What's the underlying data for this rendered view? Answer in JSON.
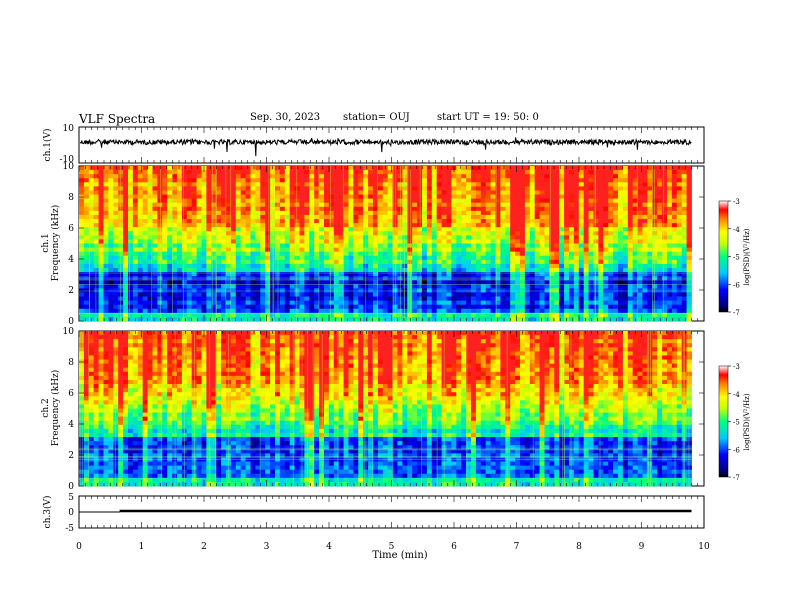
{
  "header": {
    "title": "VLF Spectra",
    "date": "Sep. 30, 2023",
    "station": "station= OUJ",
    "start": "start  UT =   19: 50: 0"
  },
  "chart_data": [
    {
      "type": "line",
      "panel": "ch1-waveform",
      "ylabel": "ch.1(V)",
      "ylim": [
        -10,
        10
      ],
      "yticks": [
        "10",
        "-10"
      ],
      "xlim": [
        0,
        10
      ]
    },
    {
      "type": "heatmap",
      "panel": "ch1-spectrogram",
      "ylabel_top": "ch.1",
      "ylabel": "Frequency (kHz)",
      "ylim": [
        0,
        10
      ],
      "yticks": [
        "0",
        "2",
        "4",
        "6",
        "8",
        "10"
      ],
      "xlim": [
        0,
        10
      ],
      "colorbar": {
        "label": "log(PSD)(V²/Hz)",
        "min": -7,
        "max": -3,
        "ticks": [
          "-3",
          "-4",
          "-5",
          "-6",
          "-7"
        ]
      }
    },
    {
      "type": "heatmap",
      "panel": "ch2-spectrogram",
      "ylabel_top": "ch.2",
      "ylabel": "Frequency (kHz)",
      "ylim": [
        0,
        10
      ],
      "yticks": [
        "0",
        "2",
        "4",
        "6",
        "8",
        "10"
      ],
      "xlim": [
        0,
        10
      ],
      "colorbar": {
        "label": "log(PSD)(V²/Hz)",
        "min": -7,
        "max": -3,
        "ticks": [
          "-3",
          "-4",
          "-5",
          "-6",
          "-7"
        ]
      }
    },
    {
      "type": "line",
      "panel": "ch3-waveform",
      "ylabel": "ch.3(V)",
      "ylim": [
        -5,
        5
      ],
      "yticks": [
        "5",
        "0",
        "-5"
      ],
      "xlim": [
        0,
        10
      ],
      "xlabel": "Time (min)",
      "xticks": [
        "0",
        "1",
        "2",
        "3",
        "4",
        "5",
        "6",
        "7",
        "8",
        "9",
        "10"
      ]
    }
  ]
}
